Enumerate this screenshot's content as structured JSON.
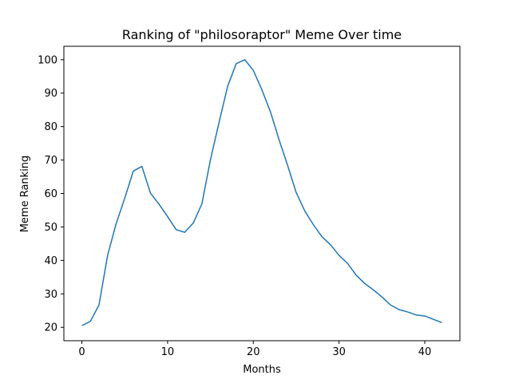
{
  "chart_data": {
    "type": "line",
    "title": "Ranking of \"philosoraptor\" Meme Over time",
    "xlabel": "Months",
    "ylabel": "Meme Ranking",
    "xlim": [
      -2.1,
      44.1
    ],
    "ylim": [
      16.0,
      104.0
    ],
    "xticks": [
      0,
      10,
      20,
      30,
      40
    ],
    "yticks": [
      20,
      30,
      40,
      50,
      60,
      70,
      80,
      90,
      100
    ],
    "grid": false,
    "line_color": "#1f77b4",
    "series": [
      {
        "name": "philosoraptor",
        "x": [
          0,
          1,
          2,
          3,
          4,
          5,
          6,
          7,
          8,
          9,
          10,
          11,
          12,
          13,
          14,
          15,
          16,
          17,
          18,
          19,
          20,
          21,
          22,
          23,
          24,
          25,
          26,
          27,
          28,
          29,
          30,
          31,
          32,
          33,
          34,
          35,
          36,
          37,
          38,
          39,
          40,
          41,
          42
        ],
        "values": [
          20.5,
          21.8,
          26.7,
          41.5,
          51.0,
          58.6,
          66.7,
          68.1,
          60.1,
          56.8,
          53.1,
          49.2,
          48.4,
          51.2,
          56.9,
          70.1,
          81.2,
          92.0,
          98.8,
          100.0,
          96.8,
          91.0,
          84.4,
          76.1,
          68.4,
          60.3,
          54.8,
          50.7,
          47.1,
          44.7,
          41.5,
          39.1,
          35.6,
          33.1,
          31.2,
          29.1,
          26.7,
          25.3,
          24.6,
          23.7,
          23.4,
          22.4,
          21.4
        ]
      }
    ]
  }
}
